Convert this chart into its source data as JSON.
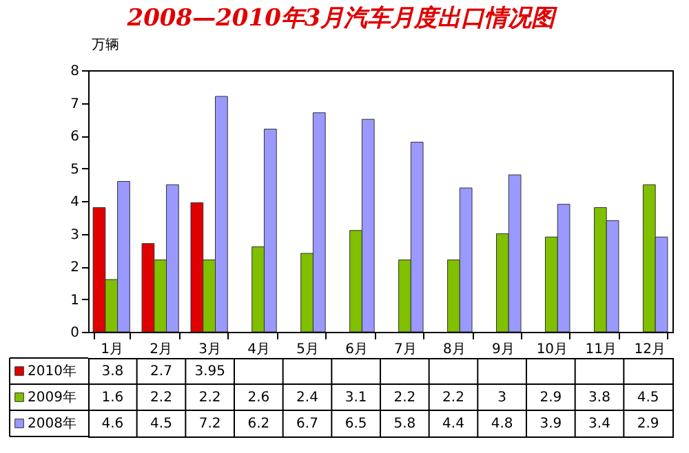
{
  "chart_data": {
    "type": "bar",
    "title": "2008—2010年3月汽车月度出口情况图",
    "ylabel": "万辆",
    "categories": [
      "1月",
      "2月",
      "3月",
      "4月",
      "5月",
      "6月",
      "7月",
      "8月",
      "9月",
      "10月",
      "11月",
      "12月"
    ],
    "series": [
      {
        "name": "2010年",
        "color": "#e00000",
        "values": [
          3.8,
          2.7,
          3.95,
          null,
          null,
          null,
          null,
          null,
          null,
          null,
          null,
          null
        ]
      },
      {
        "name": "2009年",
        "color": "#80c000",
        "values": [
          1.6,
          2.2,
          2.2,
          2.6,
          2.4,
          3.1,
          2.2,
          2.2,
          3,
          2.9,
          3.8,
          4.5
        ]
      },
      {
        "name": "2008年",
        "color": "#9999ff",
        "values": [
          4.6,
          4.5,
          7.2,
          6.2,
          6.7,
          6.5,
          5.8,
          4.4,
          4.8,
          3.9,
          3.4,
          2.9
        ]
      }
    ],
    "ylim": [
      0,
      8
    ],
    "yticks": [
      0,
      1,
      2,
      3,
      4,
      5,
      6,
      7,
      8
    ],
    "grid": false,
    "legend": "bottom left",
    "data_labels": true
  }
}
